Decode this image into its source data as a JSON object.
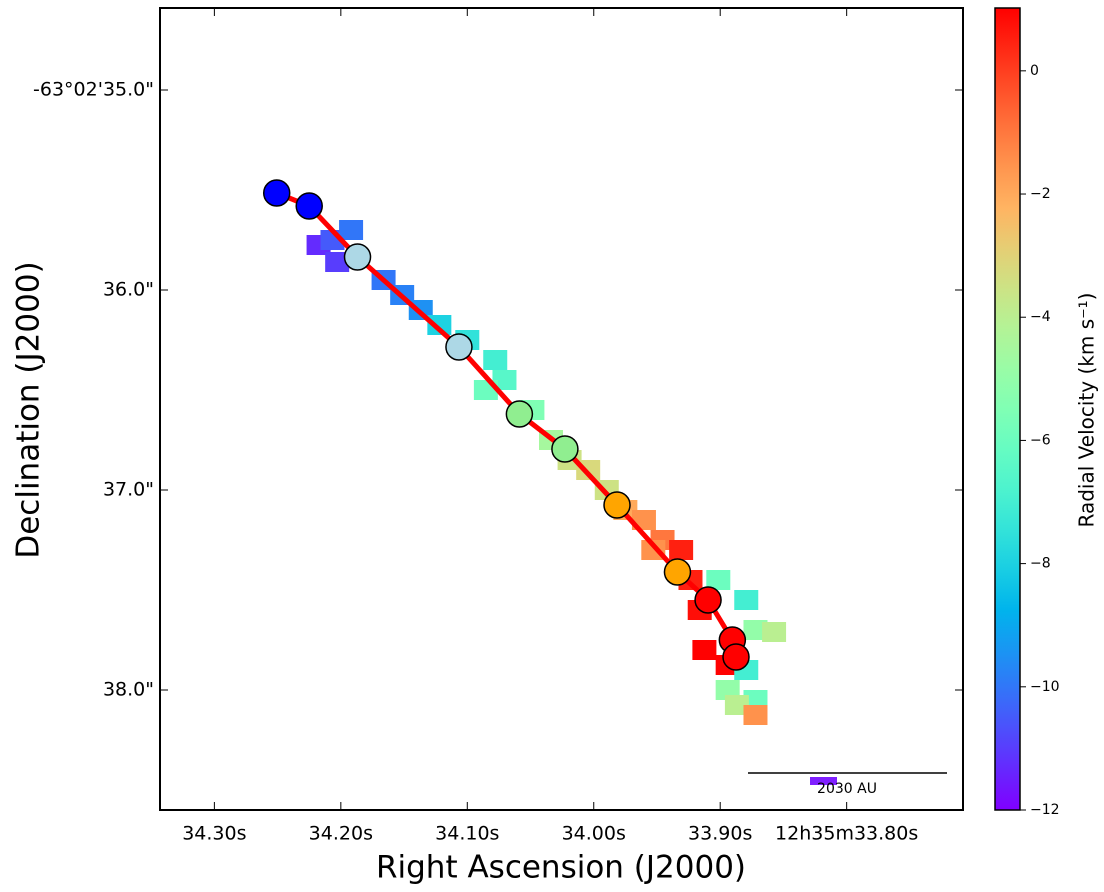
{
  "chart_data": {
    "type": "scatter",
    "xlabel": "Right Ascension (J2000)",
    "ylabel": "Declination (J2000)",
    "colorbar_label": "Radial Velocity (km s⁻¹)",
    "xlim": [
      34.343,
      33.708
    ],
    "ylim": [
      34.59,
      38.6
    ],
    "xticks": [
      {
        "value": 34.3,
        "label": "34.30s"
      },
      {
        "value": 34.2,
        "label": "34.20s"
      },
      {
        "value": 34.1,
        "label": "34.10s"
      },
      {
        "value": 34.0,
        "label": "34.00s"
      },
      {
        "value": 33.9,
        "label": "33.90s"
      },
      {
        "value": 33.8,
        "label": "12h35m33.80s"
      }
    ],
    "yticks": [
      {
        "value": 35,
        "label": "-63°02'35.0\""
      },
      {
        "value": 36,
        "label": "36.0\""
      },
      {
        "value": 37,
        "label": "37.0\""
      },
      {
        "value": 38,
        "label": "38.0\""
      }
    ],
    "clim": [
      -12,
      1.02
    ],
    "cticks": [
      0,
      {
        "value": -2,
        "label": "−2"
      },
      {
        "value": -4,
        "label": "−4"
      },
      {
        "value": -6,
        "label": "−6"
      },
      {
        "value": -8,
        "label": "−8"
      },
      {
        "value": -10,
        "label": "−10"
      },
      {
        "value": -12,
        "label": "−12"
      }
    ],
    "line_color": "#ff0000",
    "series": [
      {
        "x": [
          34.2507,
          34.225,
          34.1868,
          34.1066,
          34.0588,
          34.0228,
          33.9816,
          33.9338,
          33.9096,
          33.8904,
          33.8875
        ],
        "values": [
          35.515,
          35.58,
          35.835,
          36.285,
          36.62,
          36.795,
          37.075,
          37.41,
          37.55,
          37.75,
          37.835
        ],
        "colors": [
          "#0000ff",
          "#0000ff",
          "#add8e6",
          "#add8e6",
          "#90ee90",
          "#90ee90",
          "#ffa500",
          "#ffa500",
          "#ff0000",
          "#ff0000",
          "#ff0000"
        ]
      }
    ],
    "map": {
      "ra": [
        34.2176,
        34.2029,
        34.2066,
        34.1919,
        34.1662,
        34.1515,
        34.1368,
        34.1221,
        34.1,
        34.0779,
        34.0706,
        34.0853,
        34.0485,
        34.0338,
        34.0191,
        34.0044,
        33.9897,
        33.975,
        33.9603,
        33.9456,
        33.9529,
        33.9309,
        33.9235,
        33.9015,
        33.8794,
        33.8721,
        33.8574,
        33.9162,
        33.9125,
        33.8941,
        33.8794,
        33.8941,
        33.8721,
        33.8868,
        33.8721
      ],
      "dec": [
        35.775,
        35.86,
        35.75,
        35.7,
        35.95,
        36.025,
        36.1,
        36.175,
        36.25,
        36.35,
        36.45,
        36.5,
        36.6,
        36.75,
        36.85,
        36.9,
        37.0,
        37.1,
        37.15,
        37.25,
        37.3,
        37.3,
        37.45,
        37.45,
        37.55,
        37.7,
        37.71,
        37.6,
        37.8,
        37.875,
        37.9,
        38.0,
        38.05,
        38.075,
        38.125
      ],
      "velocity": [
        -11.3,
        -11,
        -10.5,
        -10,
        -10,
        -9.8,
        -9.5,
        -8,
        -7.5,
        -7,
        -6.5,
        -6,
        -5.5,
        -4.5,
        -3.5,
        -3.2,
        -3.5,
        -2,
        -1.5,
        -1,
        -1.5,
        0.5,
        0.5,
        -6,
        -7,
        -5,
        -4,
        0.8,
        1,
        1,
        -7,
        -5,
        -6,
        -4,
        -1.5
      ]
    },
    "scale_bar_label": "2030 AU"
  }
}
